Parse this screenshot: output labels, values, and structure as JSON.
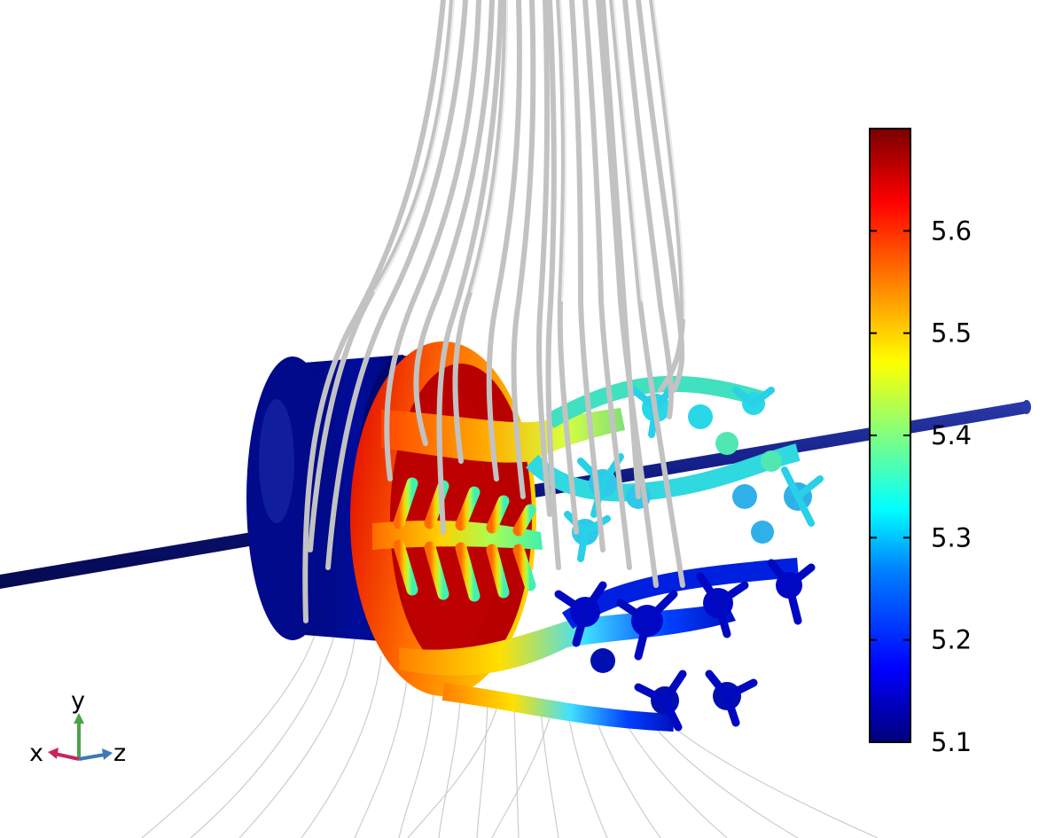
{
  "colorbar": {
    "ticks": [
      5.6,
      5.5,
      5.4,
      5.3,
      5.2,
      5.1
    ],
    "range": [
      5.1,
      5.7
    ],
    "gradient_colors": [
      "#00007a",
      "#0000ff",
      "#0080ff",
      "#00ffff",
      "#80ff80",
      "#ffff00",
      "#ff8000",
      "#ff0000",
      "#7a0000"
    ]
  },
  "axes_triad": {
    "x_label": "x",
    "y_label": "y",
    "z_label": "z",
    "x_color": "#c8245c",
    "y_color": "#4aa24a",
    "z_color": "#3d78b8"
  },
  "model": {
    "rod_color": "#0a127a",
    "disk_color": "#000a8a",
    "streamline_color": "#c9c9c9"
  }
}
